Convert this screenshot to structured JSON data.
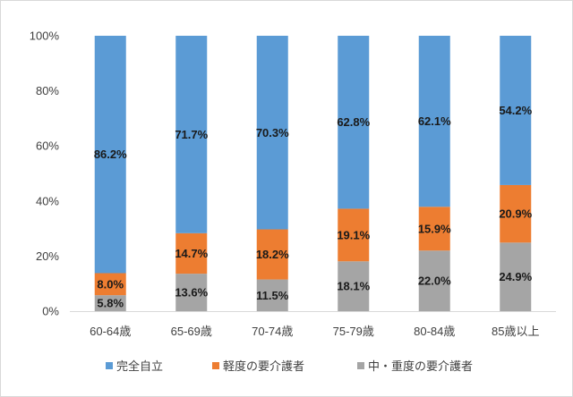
{
  "chart_data": {
    "type": "bar",
    "stacked": true,
    "percent_stacked": true,
    "categories": [
      "60-64歳",
      "65-69歳",
      "70-74歳",
      "75-79歳",
      "80-84歳",
      "85歳以上"
    ],
    "series": [
      {
        "name": "中・重度の要介護者",
        "values": [
          5.8,
          13.6,
          11.5,
          18.1,
          22.0,
          24.9
        ],
        "labels": [
          "5.8%",
          "13.6%",
          "11.5%",
          "18.1%",
          "22.0%",
          "24.9%"
        ],
        "color": "#a5a5a5"
      },
      {
        "name": "軽度の要介護者",
        "values": [
          8.0,
          14.7,
          18.2,
          19.1,
          15.9,
          20.9
        ],
        "labels": [
          "8.0%",
          "14.7%",
          "18.2%",
          "19.1%",
          "15.9%",
          "20.9%"
        ],
        "color": "#ed7d31"
      },
      {
        "name": "完全自立",
        "values": [
          86.2,
          71.7,
          70.3,
          62.8,
          62.1,
          54.2
        ],
        "labels": [
          "86.2%",
          "71.7%",
          "70.3%",
          "62.8%",
          "62.1%",
          "54.2%"
        ],
        "color": "#5b9bd5"
      }
    ],
    "legend_order": [
      "完全自立",
      "軽度の要介護者",
      "中・重度の要介護者"
    ],
    "yticks": [
      "0%",
      "20%",
      "40%",
      "60%",
      "80%",
      "100%"
    ],
    "ylim": [
      0,
      100
    ],
    "grid": false,
    "legend_position": "bottom"
  }
}
